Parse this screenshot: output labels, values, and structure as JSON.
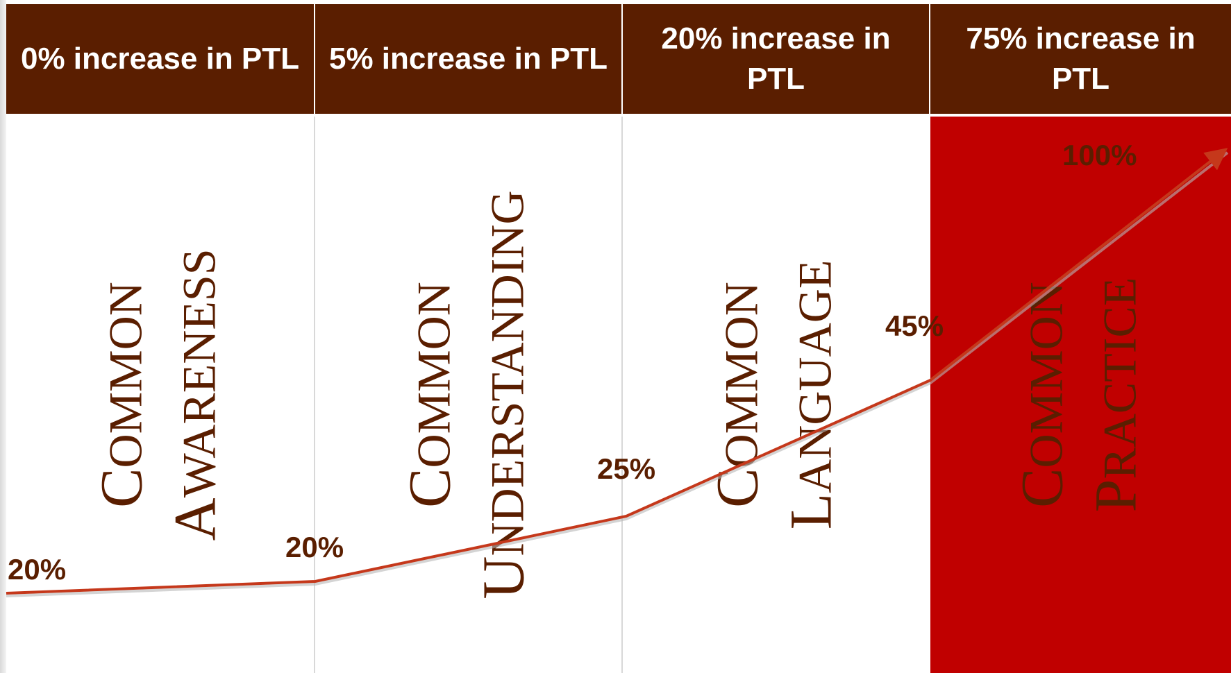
{
  "headers": [
    "0% increase in PTL",
    "5% increase in PTL",
    "20% increase in PTL",
    "75% increase in PTL"
  ],
  "stages": [
    {
      "line1": "Common",
      "line2": "Awareness"
    },
    {
      "line1": "Common",
      "line2": "Understanding"
    },
    {
      "line1": "Common",
      "line2": "Language"
    },
    {
      "line1": "Common",
      "line2": "Practice"
    }
  ],
  "percent_labels": [
    "20%",
    "20%",
    "25%",
    "45%",
    "100%"
  ],
  "colors": {
    "header_bg": "#5a1e00",
    "text_dark": "#5a1e00",
    "highlight_column": "#c00000",
    "trend_line": "#c5381b"
  }
}
